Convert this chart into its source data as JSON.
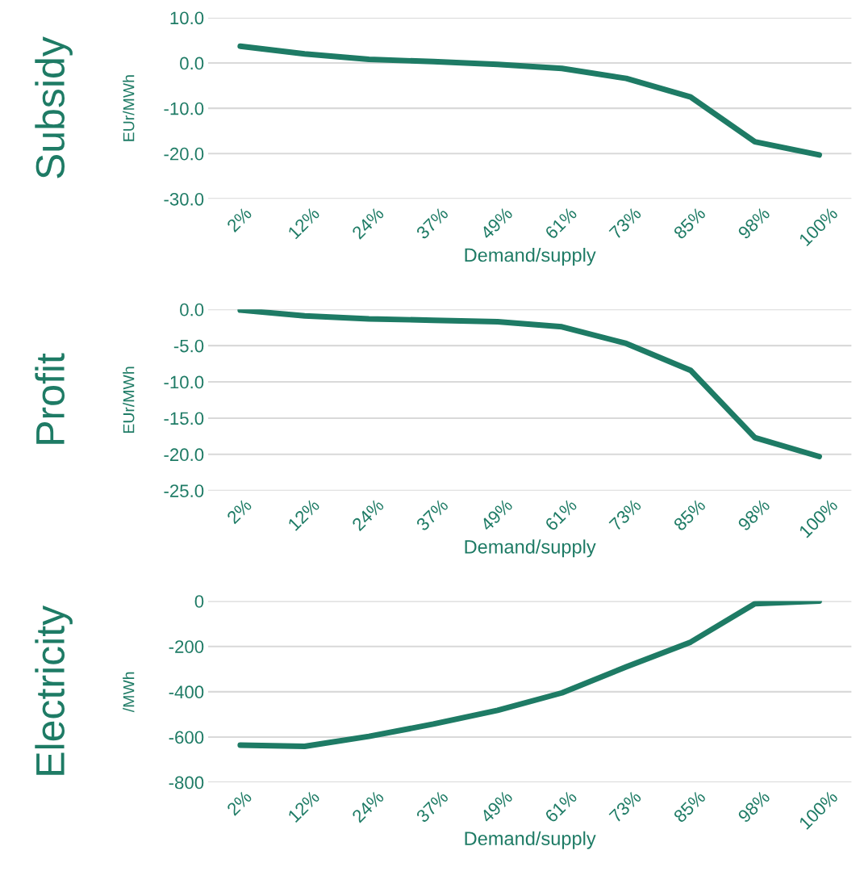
{
  "chart_data": [
    {
      "type": "line",
      "title": "Subsidy",
      "xlabel": "Demand/supply",
      "ylabel": "EUr/MWh",
      "categories": [
        "2%",
        "12%",
        "24%",
        "37%",
        "49%",
        "61%",
        "73%",
        "85%",
        "98%",
        "100%"
      ],
      "series": [
        {
          "color": "#1e7b65",
          "values": [
            3.7,
            2.0,
            0.8,
            0.3,
            -0.3,
            -1.2,
            -3.4,
            -7.5,
            -17.4,
            -20.3
          ]
        }
      ],
      "ylim": [
        -30,
        10
      ],
      "yticks": [
        {
          "value": -30,
          "label": "-30.0"
        },
        {
          "value": -20,
          "label": "-20.0"
        },
        {
          "value": -10,
          "label": "-10.0"
        },
        {
          "value": 0,
          "label": "0.0"
        },
        {
          "value": 10,
          "label": "10.0"
        }
      ],
      "grid": "y",
      "legend": false,
      "marker": "none",
      "line_style": "solid"
    },
    {
      "type": "line",
      "title": "Profit",
      "xlabel": "Demand/supply",
      "ylabel": "EUr/MWh",
      "categories": [
        "2%",
        "12%",
        "24%",
        "37%",
        "49%",
        "61%",
        "73%",
        "85%",
        "98%",
        "100%"
      ],
      "series": [
        {
          "color": "#1e7b65",
          "values": [
            -0.1,
            -0.9,
            -1.3,
            -1.5,
            -1.7,
            -2.4,
            -4.7,
            -8.4,
            -17.7,
            -20.3
          ]
        }
      ],
      "ylim": [
        -25,
        0
      ],
      "yticks": [
        {
          "value": -25,
          "label": "-25.0"
        },
        {
          "value": -20,
          "label": "-20.0"
        },
        {
          "value": -15,
          "label": "-15.0"
        },
        {
          "value": -10,
          "label": "-10.0"
        },
        {
          "value": -5,
          "label": "-5.0"
        },
        {
          "value": 0,
          "label": "0.0"
        }
      ],
      "grid": "y",
      "legend": false,
      "marker": "none",
      "line_style": "solid"
    },
    {
      "type": "line",
      "title": "Electricity",
      "xlabel": "Demand/supply",
      "ylabel": "/MWh",
      "categories": [
        "2%",
        "12%",
        "24%",
        "37%",
        "49%",
        "61%",
        "73%",
        "85%",
        "98%",
        "100%"
      ],
      "series": [
        {
          "color": "#1e7b65",
          "values": [
            -636,
            -641,
            -597,
            -543,
            -482,
            -405,
            -290,
            -181,
            -11,
            0
          ]
        }
      ],
      "ylim": [
        -800,
        0
      ],
      "yticks": [
        -800,
        -600,
        -400,
        -200,
        0
      ],
      "grid": "y",
      "legend": false,
      "marker": "none",
      "line_style": "solid"
    }
  ]
}
